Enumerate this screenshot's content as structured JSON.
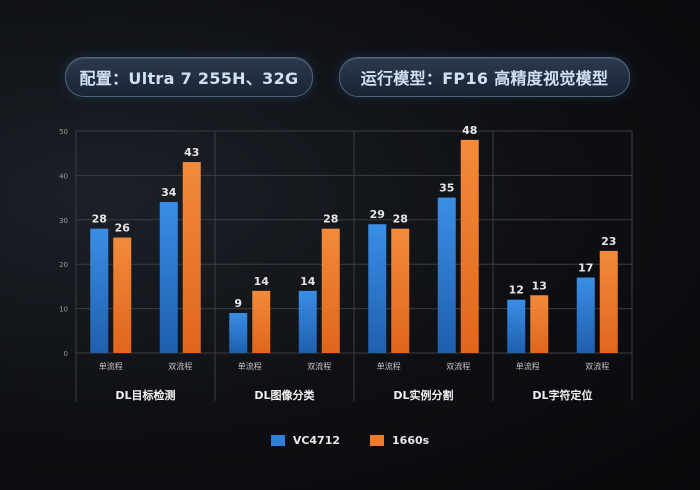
{
  "header": {
    "config_label": "配置：Ultra 7 255H、32G",
    "model_label": "运行模型：FP16 高精度视觉模型"
  },
  "colors": {
    "vc4712": "#2f7fd8",
    "r1660s": "#f07a2a",
    "grid": "#3a3d42",
    "axis_text": "#9a9a9a",
    "label_text": "#e6e6e6"
  },
  "legend": {
    "series_1": "VC4712",
    "series_2": "1660s"
  },
  "chart_data": {
    "type": "bar",
    "ylim": [
      0,
      50
    ],
    "yticks": [
      0,
      10,
      20,
      30,
      40,
      50
    ],
    "grid": true,
    "legend_position": "bottom",
    "groups": [
      {
        "name": "DL目标检测",
        "categories": [
          "单流程",
          "双流程"
        ]
      },
      {
        "name": "DL图像分类",
        "categories": [
          "单流程",
          "双流程"
        ]
      },
      {
        "name": "DL实例分割",
        "categories": [
          "单流程",
          "双流程"
        ]
      },
      {
        "name": "DL字符定位",
        "categories": [
          "单流程",
          "双流程"
        ]
      }
    ],
    "categories": [
      "单流程",
      "双流程",
      "单流程",
      "双流程",
      "单流程",
      "双流程",
      "单流程",
      "双流程"
    ],
    "series": [
      {
        "name": "VC4712",
        "values": [
          28,
          34,
          9,
          14,
          29,
          35,
          12,
          17
        ]
      },
      {
        "name": "1660s",
        "values": [
          26,
          43,
          14,
          28,
          28,
          48,
          13,
          23
        ]
      }
    ]
  }
}
